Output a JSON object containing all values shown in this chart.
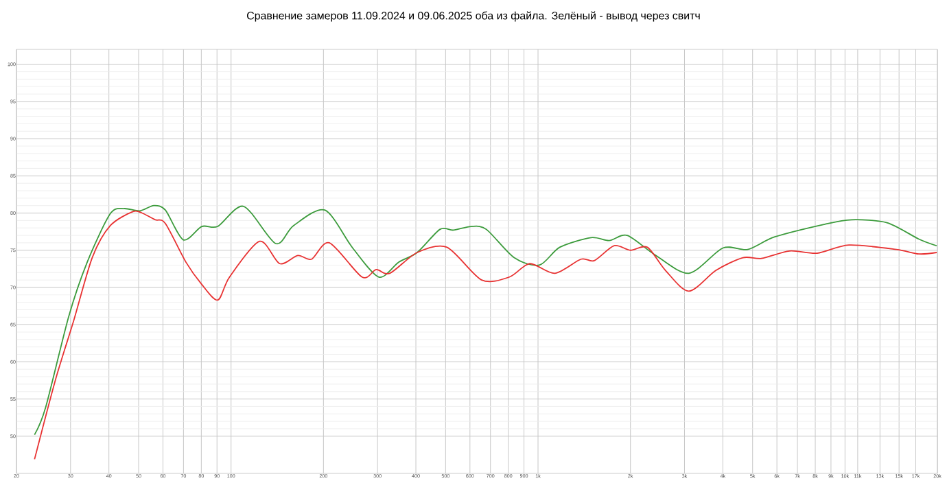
{
  "chart_data": {
    "type": "line",
    "title": "Сравнение замеров 11.09.2024 и 09.06.2025 оба из файла. Зелёный - вывод через свитч",
    "log": "x",
    "grid": true,
    "xlim": [
      20,
      20000
    ],
    "ylim": [
      45,
      102
    ],
    "xticks": [
      20,
      30,
      40,
      50,
      60,
      70,
      80,
      90,
      100,
      200,
      300,
      400,
      500,
      600,
      700,
      800,
      900,
      {
        "value": 1000,
        "label": "1k"
      },
      {
        "value": 2000,
        "label": "2k"
      },
      {
        "value": 3000,
        "label": "3k"
      },
      {
        "value": 4000,
        "label": "4k"
      },
      {
        "value": 5000,
        "label": "5k"
      },
      {
        "value": 6000,
        "label": "6k"
      },
      {
        "value": 7000,
        "label": "7k"
      },
      {
        "value": 8000,
        "label": "8k"
      },
      {
        "value": 9000,
        "label": "9k"
      },
      {
        "value": 10000,
        "label": "10k"
      },
      {
        "value": 11000,
        "label": "11k"
      },
      {
        "value": 13000,
        "label": "13k"
      },
      {
        "value": 15000,
        "label": "15k"
      },
      {
        "value": 17000,
        "label": "17k"
      },
      {
        "value": 20000,
        "label": "20k"
      }
    ],
    "yticks": [
      50,
      55,
      60,
      65,
      70,
      75,
      80,
      85,
      90,
      95,
      100
    ],
    "series": [
      {
        "color": "#3c9b3c",
        "x": [
          22.9,
          24.9,
          29.6,
          34,
          40.4,
          44.8,
          50.5,
          56,
          61.1,
          69.9,
          80.3,
          90.5,
          109.9,
          139.8,
          159.7,
          202,
          249,
          303,
          352,
          404,
          479,
          530,
          606,
          679,
          836,
          1010,
          1177,
          1488,
          1706,
          1952,
          2400,
          3100,
          4000,
          4820,
          5910,
          8590,
          10500,
          13700,
          17400,
          19900
        ],
        "values": [
          50.2,
          53.9,
          66.1,
          73.4,
          79.9,
          80.6,
          80.3,
          81,
          80.4,
          76.4,
          78.2,
          78.2,
          80.9,
          75.9,
          78.3,
          80.4,
          75.3,
          71.4,
          73.4,
          74.7,
          77.8,
          77.7,
          78.2,
          77.8,
          74,
          73,
          75.4,
          76.7,
          76.3,
          77,
          74.4,
          71.9,
          75.3,
          75.1,
          76.8,
          78.5,
          79.1,
          78.7,
          76.5,
          75.6
        ]
      },
      {
        "color": "#e83232",
        "x": [
          22.9,
          26.8,
          30.7,
          35.3,
          40.4,
          47.9,
          51.3,
          56.6,
          61.1,
          71.3,
          80.3,
          90.5,
          98.9,
          123.9,
          144,
          165,
          183,
          209,
          267,
          297,
          329,
          404,
          505,
          655,
          807,
          940,
          1134,
          1380,
          1525,
          1770,
          2000,
          2270,
          2600,
          3100,
          3800,
          4650,
          5350,
          6600,
          8120,
          10300,
          14700,
          17400,
          19900
        ],
        "values": [
          46.9,
          57.6,
          65.5,
          74,
          78.3,
          80.2,
          80,
          79.1,
          78.6,
          73.4,
          70.4,
          68.3,
          71.4,
          76.2,
          73.2,
          74.3,
          73.8,
          76,
          71.4,
          72.4,
          71.9,
          74.7,
          75.4,
          71,
          71.4,
          73.2,
          71.9,
          73.8,
          73.6,
          75.6,
          75,
          75.4,
          72.3,
          69.5,
          72.3,
          74,
          73.9,
          74.9,
          74.6,
          75.7,
          75.1,
          74.5,
          74.7
        ]
      }
    ]
  }
}
